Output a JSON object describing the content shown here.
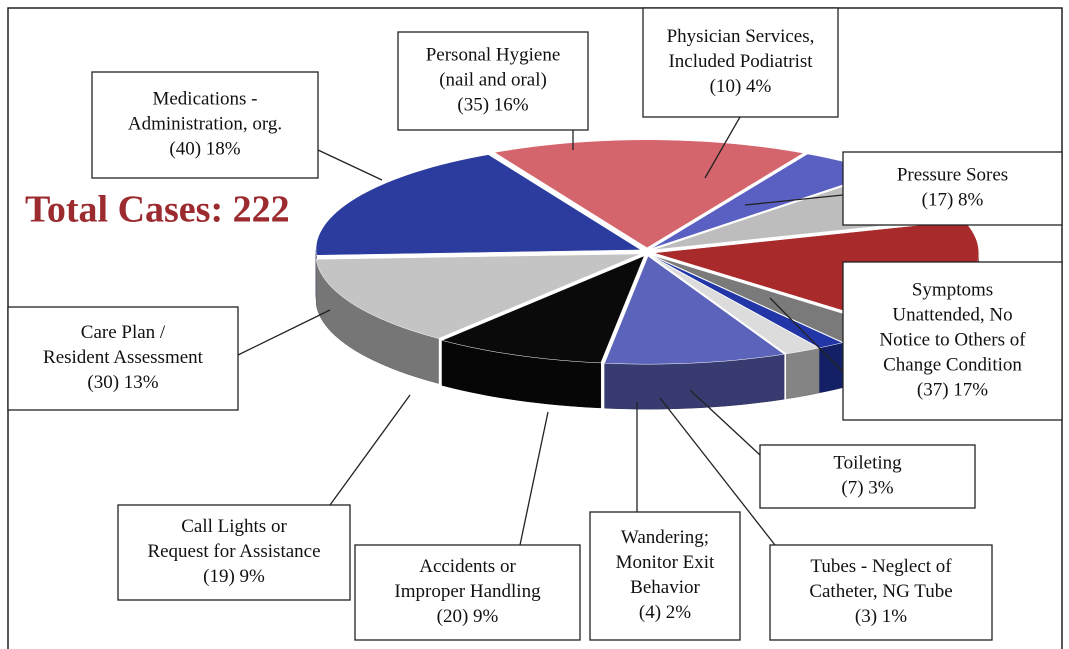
{
  "chart_data": {
    "type": "pie3d",
    "annotation": "Total Cases: 222",
    "categories": [
      [
        "Personal Hygiene",
        "(nail and oral)"
      ],
      [
        "Physician Services,",
        "Included Podiatrist"
      ],
      [
        "Pressure Sores"
      ],
      [
        "Symptoms",
        "Unattended, No",
        "Notice to Others of",
        "Change Condition"
      ],
      [
        "Toileting"
      ],
      [
        "Tubes - Neglect of",
        "Catheter, NG Tube"
      ],
      [
        "Wandering;",
        "Monitor Exit",
        "Behavior"
      ],
      [
        "Accidents or",
        "Improper Handling"
      ],
      [
        "Call Lights or",
        "Request for Assistance"
      ],
      [
        "Care Plan /",
        "Resident Assessment"
      ],
      [
        "Medications -",
        "Administration, org."
      ]
    ],
    "values": [
      35,
      10,
      17,
      37,
      7,
      3,
      4,
      20,
      19,
      30,
      40
    ],
    "value_labels": [
      "(35) 16%",
      "(10) 4%",
      "(17) 8%",
      "(37) 17%",
      "(7) 3%",
      "(3) 1%",
      "(4) 2%",
      "(20) 9%",
      "(19) 9%",
      "(30) 13%",
      "(40) 18%"
    ],
    "colors": [
      "#d4656c",
      "#5a60c2",
      "#bdbdbd",
      "#a82a2a",
      "#7a7a7a",
      "#2236a8",
      "#dcdcdc",
      "#5b63ba",
      "#0a0a0a",
      "#c4c4c4",
      "#2b3c9e"
    ]
  }
}
